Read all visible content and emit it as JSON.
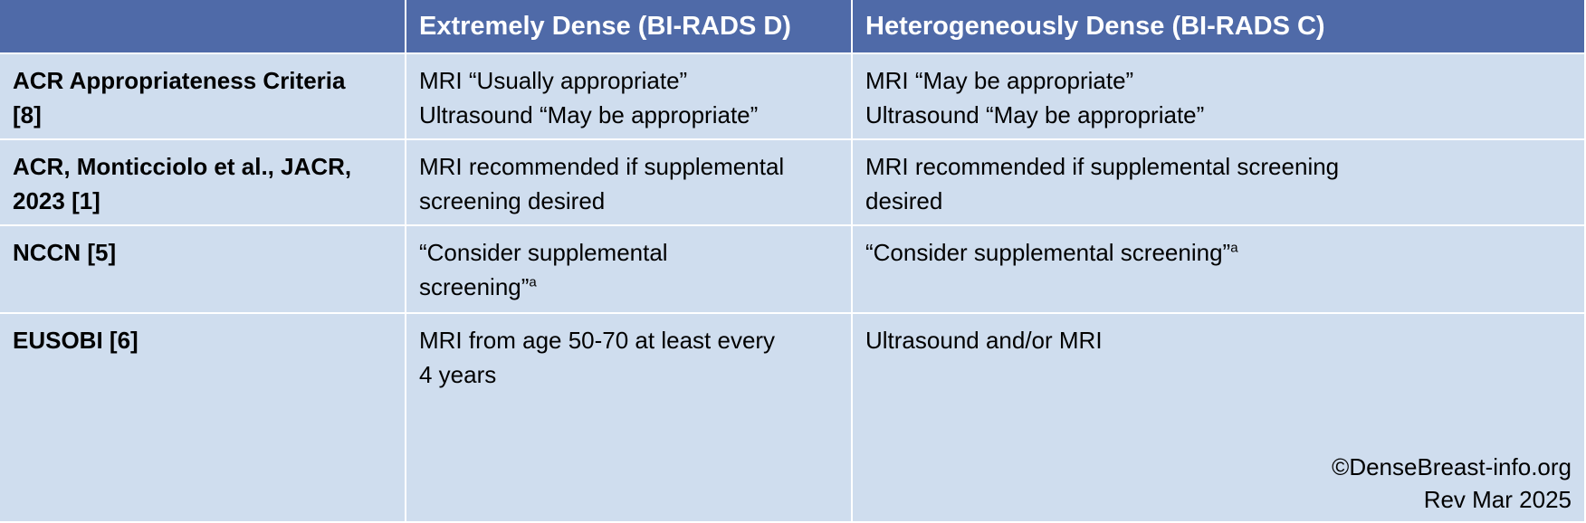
{
  "table": {
    "header": [
      "",
      "Extremely Dense (BI-RADS D)",
      "Heterogeneously Dense (BI-RADS C)"
    ],
    "rows": [
      [
        {
          "lines": [
            "ACR Appropriateness Criteria",
            "[8]"
          ]
        },
        {
          "lines": [
            "MRI “Usually appropriate”",
            "Ultrasound “May be appropriate”"
          ]
        },
        {
          "lines": [
            "MRI “May be appropriate”",
            "Ultrasound “May be appropriate”"
          ]
        }
      ],
      [
        {
          "lines": [
            "ACR, Monticciolo et al., JACR,",
            "2023 [1]"
          ]
        },
        {
          "lines": [
            "MRI recommended if supplemental",
            "screening desired"
          ]
        },
        {
          "lines": [
            "MRI recommended if supplemental screening",
            "desired"
          ]
        }
      ],
      [
        {
          "lines": [
            "NCCN [5]"
          ]
        },
        {
          "lines": [
            "“Consider supplemental",
            "screening”"
          ],
          "sup": "a"
        },
        {
          "lines": [
            "“Consider supplemental screening”"
          ],
          "sup": "a"
        }
      ],
      [
        {
          "lines": [
            "EUSOBI [6]"
          ]
        },
        {
          "lines": [
            "MRI from age 50-70 at least every",
            "4 years"
          ]
        },
        {
          "lines": [
            "Ultrasound and/or MRI"
          ]
        }
      ]
    ],
    "credit": [
      "©DenseBreast-info.org",
      "Rev Mar 2025"
    ]
  }
}
